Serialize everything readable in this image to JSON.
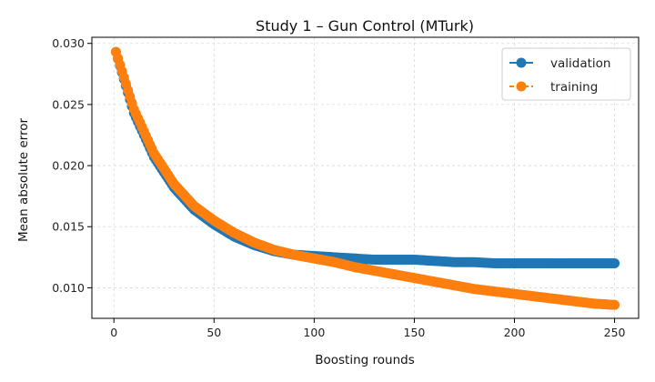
{
  "chart_data": {
    "type": "line",
    "title": "Study 1 – Gun Control (MTurk)",
    "xlabel": "Boosting rounds",
    "ylabel": "Mean absolute error",
    "xlim": [
      -11,
      262
    ],
    "ylim": [
      0.0075,
      0.0305
    ],
    "xticks": [
      0,
      50,
      100,
      150,
      200,
      250
    ],
    "yticks": [
      0.01,
      0.015,
      0.02,
      0.025,
      0.03
    ],
    "ytick_labels": [
      "0.010",
      "0.015",
      "0.020",
      "0.025",
      "0.030"
    ],
    "grid": true,
    "legend_position": "top-right",
    "series": [
      {
        "name": "validation",
        "color": "#1f77b4",
        "line_style": "solid",
        "marker": "circle",
        "x": [
          1,
          10,
          20,
          30,
          40,
          50,
          60,
          70,
          80,
          90,
          100,
          110,
          120,
          130,
          140,
          150,
          160,
          170,
          180,
          190,
          200,
          210,
          220,
          230,
          240,
          250
        ],
        "y": [
          0.0293,
          0.0243,
          0.0207,
          0.0182,
          0.0164,
          0.0152,
          0.0142,
          0.0135,
          0.013,
          0.0127,
          0.0126,
          0.0125,
          0.0124,
          0.0123,
          0.0123,
          0.0123,
          0.0122,
          0.0121,
          0.0121,
          0.012,
          0.012,
          0.012,
          0.012,
          0.012,
          0.012,
          0.012
        ]
      },
      {
        "name": "training",
        "color": "#ff7f0e",
        "line_style": "dashed",
        "marker": "circle",
        "x": [
          1,
          10,
          20,
          30,
          40,
          50,
          60,
          70,
          80,
          90,
          100,
          110,
          120,
          130,
          140,
          150,
          160,
          170,
          180,
          190,
          200,
          210,
          220,
          230,
          240,
          250
        ],
        "y": [
          0.0293,
          0.0246,
          0.021,
          0.0185,
          0.0167,
          0.0155,
          0.0145,
          0.0137,
          0.0131,
          0.0127,
          0.0124,
          0.0121,
          0.0117,
          0.0114,
          0.0111,
          0.0108,
          0.0105,
          0.0102,
          0.0099,
          0.0097,
          0.0095,
          0.0093,
          0.0091,
          0.0089,
          0.0087,
          0.0086
        ]
      }
    ]
  }
}
